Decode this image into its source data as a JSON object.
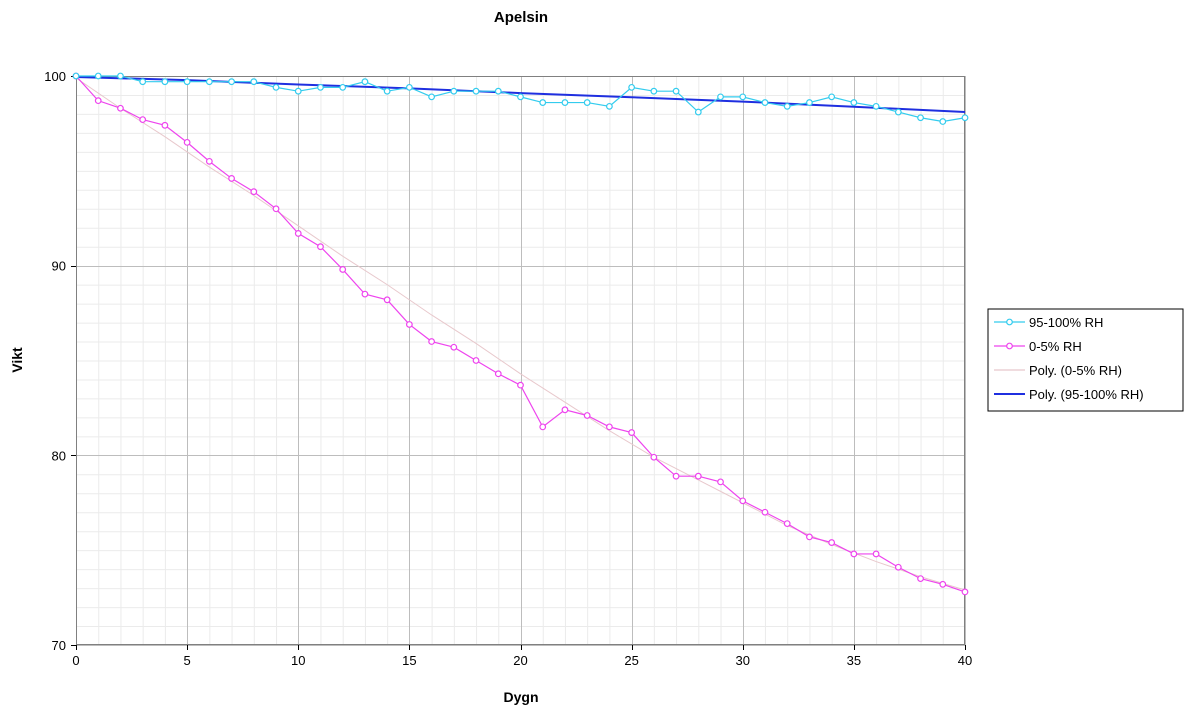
{
  "chart_data": {
    "type": "line",
    "title": "Apelsin",
    "xlabel": "Dygn",
    "ylabel": "Vikt",
    "xlim": [
      0,
      40
    ],
    "ylim": [
      70,
      100
    ],
    "x_ticks": [
      0,
      5,
      10,
      15,
      20,
      25,
      30,
      35,
      40
    ],
    "y_ticks": [
      70,
      80,
      90,
      100
    ],
    "grid": true,
    "legend_position": "right",
    "series": [
      {
        "name": "95-100% RH",
        "color": "#33CCEE",
        "marker": "circle",
        "x": [
          0,
          1,
          2,
          3,
          4,
          5,
          6,
          7,
          8,
          9,
          10,
          11,
          12,
          13,
          14,
          15,
          16,
          17,
          18,
          19,
          20,
          21,
          22,
          23,
          24,
          25,
          26,
          27,
          28,
          29,
          30,
          31,
          32,
          33,
          34,
          35,
          36,
          37,
          38,
          39,
          40
        ],
        "values": [
          100,
          100,
          100,
          99.7,
          99.7,
          99.7,
          99.7,
          99.7,
          99.7,
          99.4,
          99.2,
          99.4,
          99.4,
          99.7,
          99.2,
          99.4,
          98.9,
          99.2,
          99.2,
          99.2,
          98.9,
          98.6,
          98.6,
          98.6,
          98.4,
          99.4,
          99.2,
          99.2,
          98.1,
          98.9,
          98.9,
          98.6,
          98.4,
          98.6,
          98.9,
          98.6,
          98.4,
          98.1,
          97.8,
          97.6,
          97.8
        ]
      },
      {
        "name": "0-5% RH",
        "color": "#EE44EE",
        "marker": "circle",
        "x": [
          0,
          1,
          2,
          3,
          4,
          5,
          6,
          7,
          8,
          9,
          10,
          11,
          12,
          13,
          14,
          15,
          16,
          17,
          18,
          19,
          20,
          21,
          22,
          23,
          24,
          25,
          26,
          27,
          28,
          29,
          30,
          31,
          32,
          33,
          34,
          35,
          36,
          37,
          38,
          39,
          40
        ],
        "values": [
          100,
          98.7,
          98.3,
          97.7,
          97.4,
          96.5,
          95.5,
          94.6,
          93.9,
          93.0,
          91.7,
          91.0,
          89.8,
          88.5,
          88.2,
          86.9,
          86.0,
          85.7,
          85.0,
          84.3,
          83.7,
          81.5,
          82.4,
          82.1,
          81.5,
          81.2,
          79.9,
          78.9,
          78.9,
          78.6,
          77.6,
          77.0,
          76.4,
          75.7,
          75.4,
          74.8,
          74.8,
          74.1,
          73.5,
          73.2,
          72.8
        ]
      },
      {
        "name": "Poly. (0-5% RH)",
        "color": "#E8C8CC",
        "marker": "none",
        "trendline": true,
        "x": [
          0,
          2,
          4,
          6,
          8,
          10,
          12,
          14,
          16,
          18,
          20,
          22,
          24,
          26,
          28,
          30,
          32,
          34,
          36,
          38,
          40
        ],
        "values": [
          99.9,
          98.3,
          96.8,
          95.2,
          93.7,
          92.1,
          90.5,
          89.0,
          87.4,
          85.9,
          84.3,
          82.8,
          81.3,
          79.9,
          78.7,
          77.5,
          76.3,
          75.3,
          74.4,
          73.6,
          72.9
        ]
      },
      {
        "name": "Poly. (95-100% RH)",
        "color": "#1F2FE0",
        "marker": "none",
        "trendline": true,
        "x": [
          0,
          5,
          10,
          15,
          20,
          25,
          30,
          35,
          40
        ],
        "values": [
          99.95,
          99.78,
          99.55,
          99.35,
          99.1,
          98.88,
          98.65,
          98.38,
          98.1
        ]
      }
    ]
  }
}
